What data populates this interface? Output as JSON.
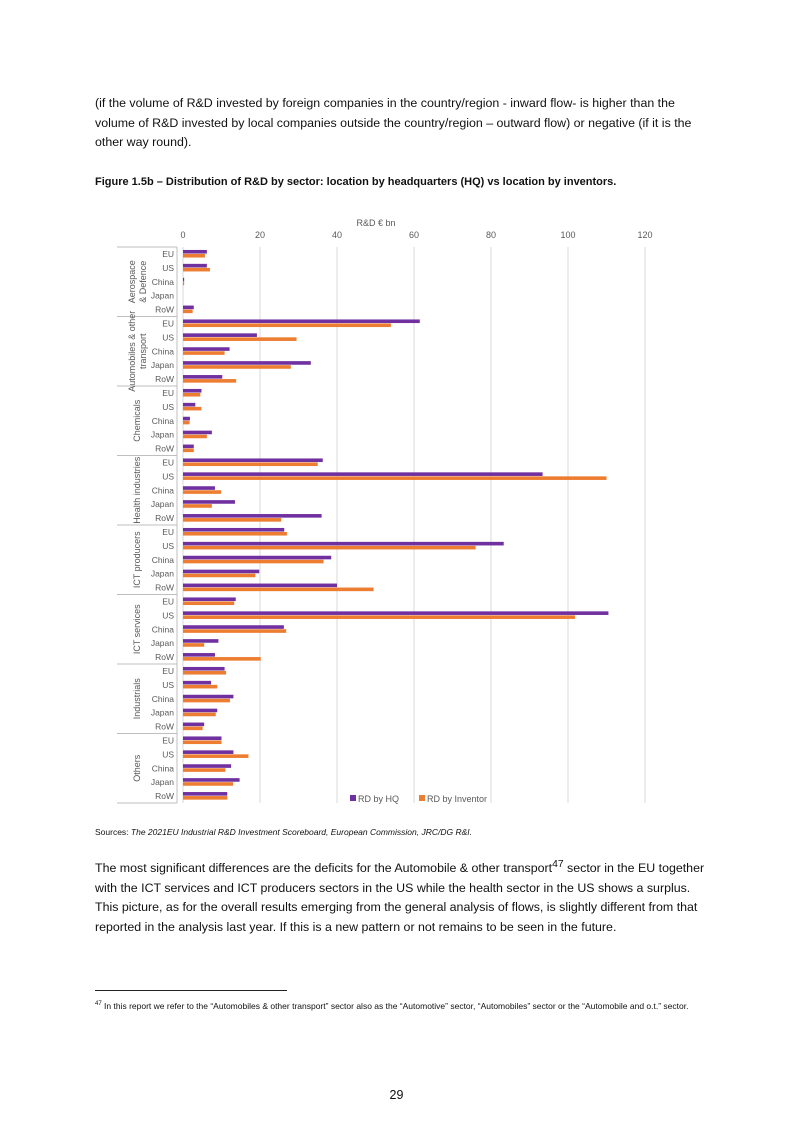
{
  "intro_text": "(if the volume of R&D invested by foreign companies in the country/region - inward flow- is higher than the volume of R&D invested by local companies outside the country/region – outward flow) or negative (if it is the other way round).",
  "figure_title": "Figure 1.5b – Distribution of R&D by sector: location by headquarters (HQ) vs location by inventors.",
  "sources": {
    "label": "Sources: ",
    "text": "The 2021EU Industrial R&D Investment Scoreboard, European Commission, JRC/DG R&I."
  },
  "outro": {
    "part1": "The most significant differences are the deficits for the Automobile & other transport",
    "sup": "47",
    "part2": "  sector in the EU together with the ICT services and ICT producers sectors in the US while the health sector in the US shows a surplus.  This picture, as for the overall results emerging from the general analysis of flows, is slightly different from that reported in the analysis last year. If this is a new pattern or not remains to be seen in the future."
  },
  "footnote": {
    "number": "47",
    "text": " In this report we refer to the “Automobiles & other transport” sector also as the “Automotive” sector, “Automobiles” sector or the “Automobile and o.t.” sector."
  },
  "page_number": "29",
  "chart_data": {
    "type": "bar",
    "orientation": "horizontal",
    "xlabel": "R&D € bn",
    "xlim": [
      0,
      120
    ],
    "xticks": [
      0,
      20,
      40,
      60,
      80,
      100,
      120
    ],
    "grid": true,
    "legend_position": "bottom-right",
    "groups": [
      {
        "sector": "Aerospace & Defence",
        "categories": [
          "EU",
          "US",
          "China",
          "Japan",
          "RoW"
        ]
      },
      {
        "sector": "Automobiles & other transport",
        "categories": [
          "EU",
          "US",
          "China",
          "Japan",
          "RoW"
        ]
      },
      {
        "sector": "Chemicals",
        "categories": [
          "EU",
          "US",
          "China",
          "Japan",
          "RoW"
        ]
      },
      {
        "sector": "Health industries",
        "categories": [
          "EU",
          "US",
          "China",
          "Japan",
          "RoW"
        ]
      },
      {
        "sector": "ICT producers",
        "categories": [
          "EU",
          "US",
          "China",
          "Japan",
          "RoW"
        ]
      },
      {
        "sector": "ICT services",
        "categories": [
          "EU",
          "US",
          "China",
          "Japan",
          "RoW"
        ]
      },
      {
        "sector": "Industrials",
        "categories": [
          "EU",
          "US",
          "China",
          "Japan",
          "RoW"
        ]
      },
      {
        "sector": "Others",
        "categories": [
          "EU",
          "US",
          "China",
          "Japan",
          "RoW"
        ]
      }
    ],
    "series": [
      {
        "name": "RD by HQ",
        "color": "#7030A0",
        "values": [
          [
            6.2,
            6.2,
            0.3,
            0,
            2.8
          ],
          [
            61.5,
            19.2,
            12.1,
            33.2,
            10.2
          ],
          [
            4.8,
            3.2,
            1.8,
            7.5,
            2.8
          ],
          [
            36.3,
            93.4,
            8.3,
            13.5,
            36.0
          ],
          [
            26.3,
            83.3,
            38.5,
            19.8,
            40.0
          ],
          [
            13.7,
            110.5,
            26.2,
            9.2,
            8.3
          ],
          [
            10.8,
            7.3,
            13.1,
            8.9,
            5.5
          ],
          [
            10.0,
            13.1,
            12.5,
            14.7,
            11.5
          ]
        ]
      },
      {
        "name": "RD by Inventor",
        "color": "#ED7D31",
        "values": [
          [
            5.7,
            7.0,
            0.3,
            0,
            2.5
          ],
          [
            54.0,
            29.5,
            10.8,
            28.0,
            13.8
          ],
          [
            4.5,
            4.8,
            1.7,
            6.2,
            2.8
          ],
          [
            35.0,
            110.0,
            9.9,
            7.5,
            25.5
          ],
          [
            27.0,
            76.0,
            36.5,
            18.8,
            49.5
          ],
          [
            13.3,
            101.8,
            26.8,
            5.5,
            20.2
          ],
          [
            11.2,
            8.9,
            12.2,
            8.5,
            5.1
          ],
          [
            10.0,
            17.0,
            11.0,
            13.0,
            11.5
          ]
        ]
      }
    ]
  }
}
